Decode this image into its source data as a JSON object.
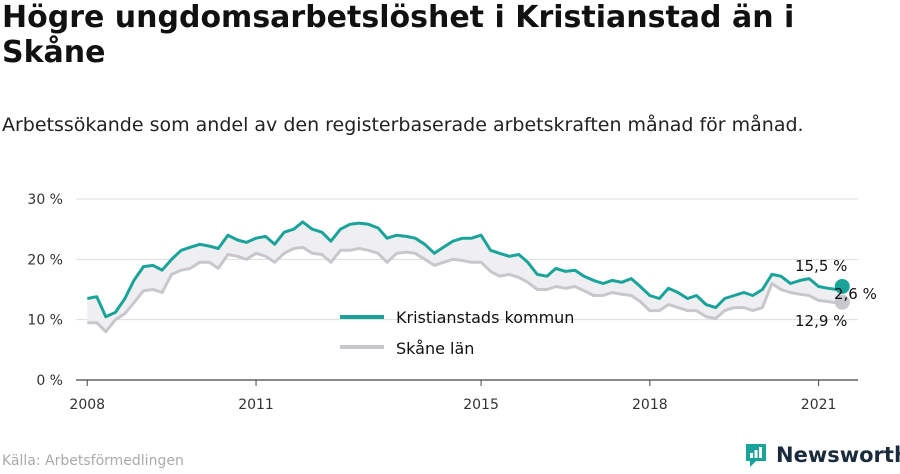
{
  "title": "Högre ungdomsarbetslöshet i Kristianstad än i Skåne",
  "subtitle": "Arbetssökande som andel av den registerbaserade arbetskraften månad för månad.",
  "source": "Källa: Arbetsförmedlingen",
  "brand": {
    "name": "Newsworthy",
    "icon": "newsworthy-logo-icon",
    "color": "#1aa39a"
  },
  "chart_data": {
    "type": "line",
    "xlabel": "",
    "ylabel": "",
    "ylim": [
      0,
      30
    ],
    "yticks": [
      0,
      10,
      20,
      30
    ],
    "ytick_labels": [
      "0 %",
      "10 %",
      "20 %",
      "30 %"
    ],
    "xlim": [
      2007.8,
      2021.7
    ],
    "xticks": [
      2008,
      2011,
      2015,
      2018,
      2021
    ],
    "xtick_labels": [
      "2008",
      "2011",
      "2015",
      "2018",
      "2021"
    ],
    "grid": true,
    "legend_position": "center",
    "series": [
      {
        "name": "Kristianstads kommun",
        "color": "#1aa39a",
        "x": [
          2008.0,
          2008.17,
          2008.33,
          2008.5,
          2008.67,
          2008.83,
          2009.0,
          2009.17,
          2009.33,
          2009.5,
          2009.67,
          2009.83,
          2010.0,
          2010.17,
          2010.33,
          2010.5,
          2010.67,
          2010.83,
          2011.0,
          2011.17,
          2011.33,
          2011.5,
          2011.67,
          2011.83,
          2012.0,
          2012.17,
          2012.33,
          2012.5,
          2012.67,
          2012.83,
          2013.0,
          2013.17,
          2013.33,
          2013.5,
          2013.67,
          2013.83,
          2014.0,
          2014.17,
          2014.33,
          2014.5,
          2014.67,
          2014.83,
          2015.0,
          2015.17,
          2015.33,
          2015.5,
          2015.67,
          2015.83,
          2016.0,
          2016.17,
          2016.33,
          2016.5,
          2016.67,
          2016.83,
          2017.0,
          2017.17,
          2017.33,
          2017.5,
          2017.67,
          2017.83,
          2018.0,
          2018.17,
          2018.33,
          2018.5,
          2018.67,
          2018.83,
          2019.0,
          2019.17,
          2019.33,
          2019.5,
          2019.67,
          2019.83,
          2020.0,
          2020.17,
          2020.33,
          2020.5,
          2020.67,
          2020.83,
          2021.0,
          2021.17,
          2021.33,
          2021.42
        ],
        "values": [
          13.5,
          13.8,
          10.5,
          11.2,
          13.5,
          16.5,
          18.8,
          19.0,
          18.2,
          20.0,
          21.5,
          22.0,
          22.5,
          22.2,
          21.8,
          24.0,
          23.2,
          22.8,
          23.5,
          23.8,
          22.5,
          24.5,
          25.0,
          26.2,
          25.0,
          24.5,
          23.0,
          25.0,
          25.8,
          26.0,
          25.8,
          25.2,
          23.5,
          24.0,
          23.8,
          23.5,
          22.5,
          21.0,
          22.0,
          23.0,
          23.5,
          23.5,
          24.0,
          21.5,
          21.0,
          20.5,
          20.8,
          19.5,
          17.5,
          17.2,
          18.5,
          18.0,
          18.2,
          17.2,
          16.5,
          16.0,
          16.5,
          16.2,
          16.8,
          15.5,
          14.0,
          13.5,
          15.2,
          14.5,
          13.5,
          14.0,
          12.5,
          12.0,
          13.5,
          14.0,
          14.5,
          14.0,
          15.0,
          17.5,
          17.2,
          16.0,
          16.5,
          16.8,
          15.5,
          15.2,
          15.0,
          15.5
        ]
      },
      {
        "name": "Skåne län",
        "color": "#c8c8cc",
        "x": [
          2008.0,
          2008.17,
          2008.33,
          2008.5,
          2008.67,
          2008.83,
          2009.0,
          2009.17,
          2009.33,
          2009.5,
          2009.67,
          2009.83,
          2010.0,
          2010.17,
          2010.33,
          2010.5,
          2010.67,
          2010.83,
          2011.0,
          2011.17,
          2011.33,
          2011.5,
          2011.67,
          2011.83,
          2012.0,
          2012.17,
          2012.33,
          2012.5,
          2012.67,
          2012.83,
          2013.0,
          2013.17,
          2013.33,
          2013.5,
          2013.67,
          2013.83,
          2014.0,
          2014.17,
          2014.33,
          2014.5,
          2014.67,
          2014.83,
          2015.0,
          2015.17,
          2015.33,
          2015.5,
          2015.67,
          2015.83,
          2016.0,
          2016.17,
          2016.33,
          2016.5,
          2016.67,
          2016.83,
          2017.0,
          2017.17,
          2017.33,
          2017.5,
          2017.67,
          2017.83,
          2018.0,
          2018.17,
          2018.33,
          2018.5,
          2018.67,
          2018.83,
          2019.0,
          2019.17,
          2019.33,
          2019.5,
          2019.67,
          2019.83,
          2020.0,
          2020.17,
          2020.33,
          2020.5,
          2020.67,
          2020.83,
          2021.0,
          2021.17,
          2021.33,
          2021.42
        ],
        "values": [
          9.5,
          9.5,
          8.0,
          10.0,
          11.0,
          12.8,
          14.8,
          15.0,
          14.5,
          17.5,
          18.2,
          18.5,
          19.5,
          19.5,
          18.5,
          20.8,
          20.5,
          20.0,
          21.0,
          20.5,
          19.5,
          21.0,
          21.8,
          22.0,
          21.0,
          20.8,
          19.5,
          21.5,
          21.5,
          21.8,
          21.5,
          21.0,
          19.5,
          21.0,
          21.2,
          21.0,
          20.0,
          19.0,
          19.5,
          20.0,
          19.8,
          19.5,
          19.5,
          18.0,
          17.2,
          17.5,
          17.0,
          16.2,
          15.0,
          15.0,
          15.5,
          15.2,
          15.5,
          14.8,
          14.0,
          14.0,
          14.5,
          14.2,
          14.0,
          13.0,
          11.5,
          11.5,
          12.5,
          12.0,
          11.5,
          11.5,
          10.5,
          10.2,
          11.5,
          12.0,
          12.0,
          11.5,
          12.0,
          16.0,
          15.0,
          14.5,
          14.2,
          14.0,
          13.2,
          13.0,
          12.8,
          12.9
        ]
      }
    ],
    "annotations": {
      "kristianstad_last": "15,5 %",
      "difference": "2,6 %",
      "skane_last": "12,9 %"
    }
  }
}
